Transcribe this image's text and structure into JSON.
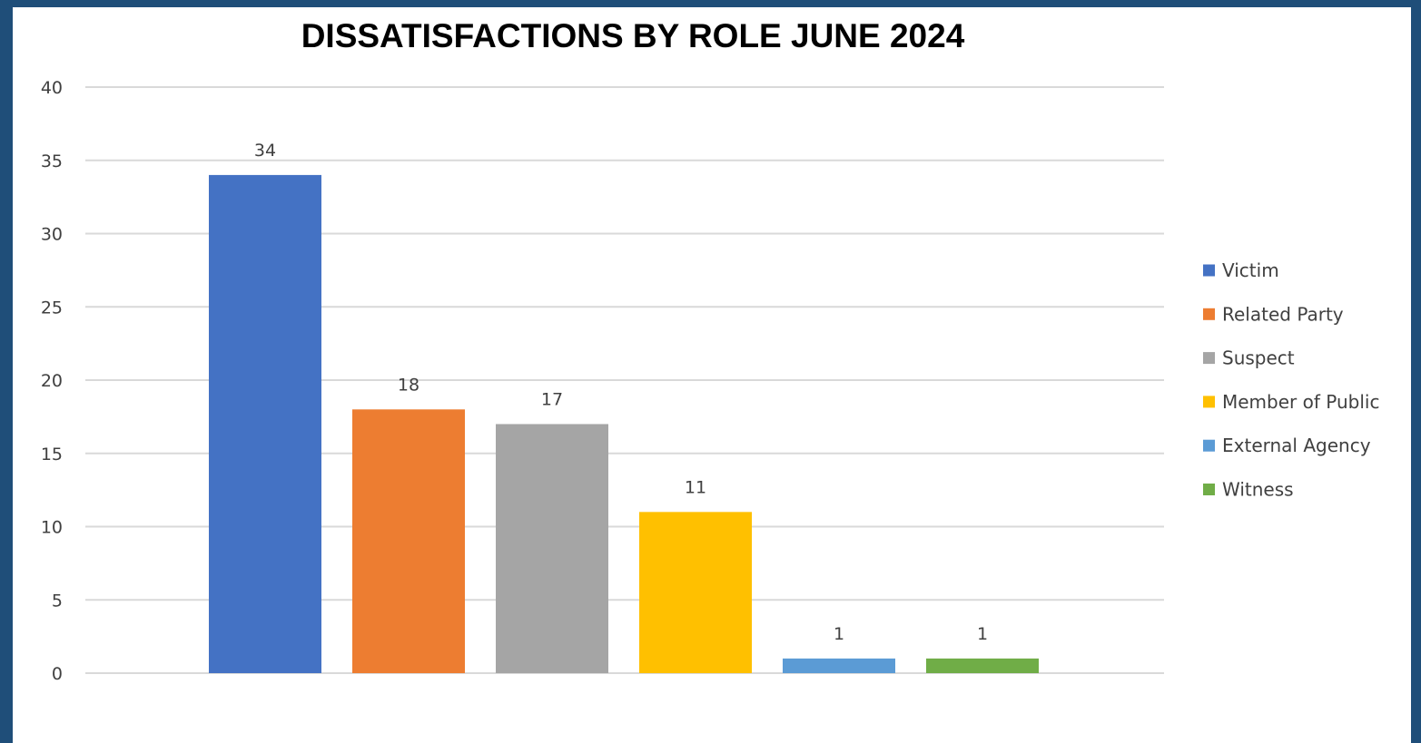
{
  "chart_data": {
    "type": "bar",
    "title": "DISSATISFACTIONS BY ROLE JUNE 2024",
    "xlabel": "",
    "ylabel": "",
    "ylim": [
      0,
      40
    ],
    "yticks": [
      0,
      5,
      10,
      15,
      20,
      25,
      30,
      35,
      40
    ],
    "grid": true,
    "legend_position": "right",
    "series": [
      {
        "name": "Victim",
        "value": 34,
        "color": "#4472c4"
      },
      {
        "name": "Related Party",
        "value": 18,
        "color": "#ed7d31"
      },
      {
        "name": "Suspect",
        "value": 17,
        "color": "#a5a5a5"
      },
      {
        "name": "Member of Public",
        "value": 11,
        "color": "#ffc000"
      },
      {
        "name": "External Agency",
        "value": 1,
        "color": "#5b9bd5"
      },
      {
        "name": "Witness",
        "value": 1,
        "color": "#70ad47"
      }
    ]
  }
}
